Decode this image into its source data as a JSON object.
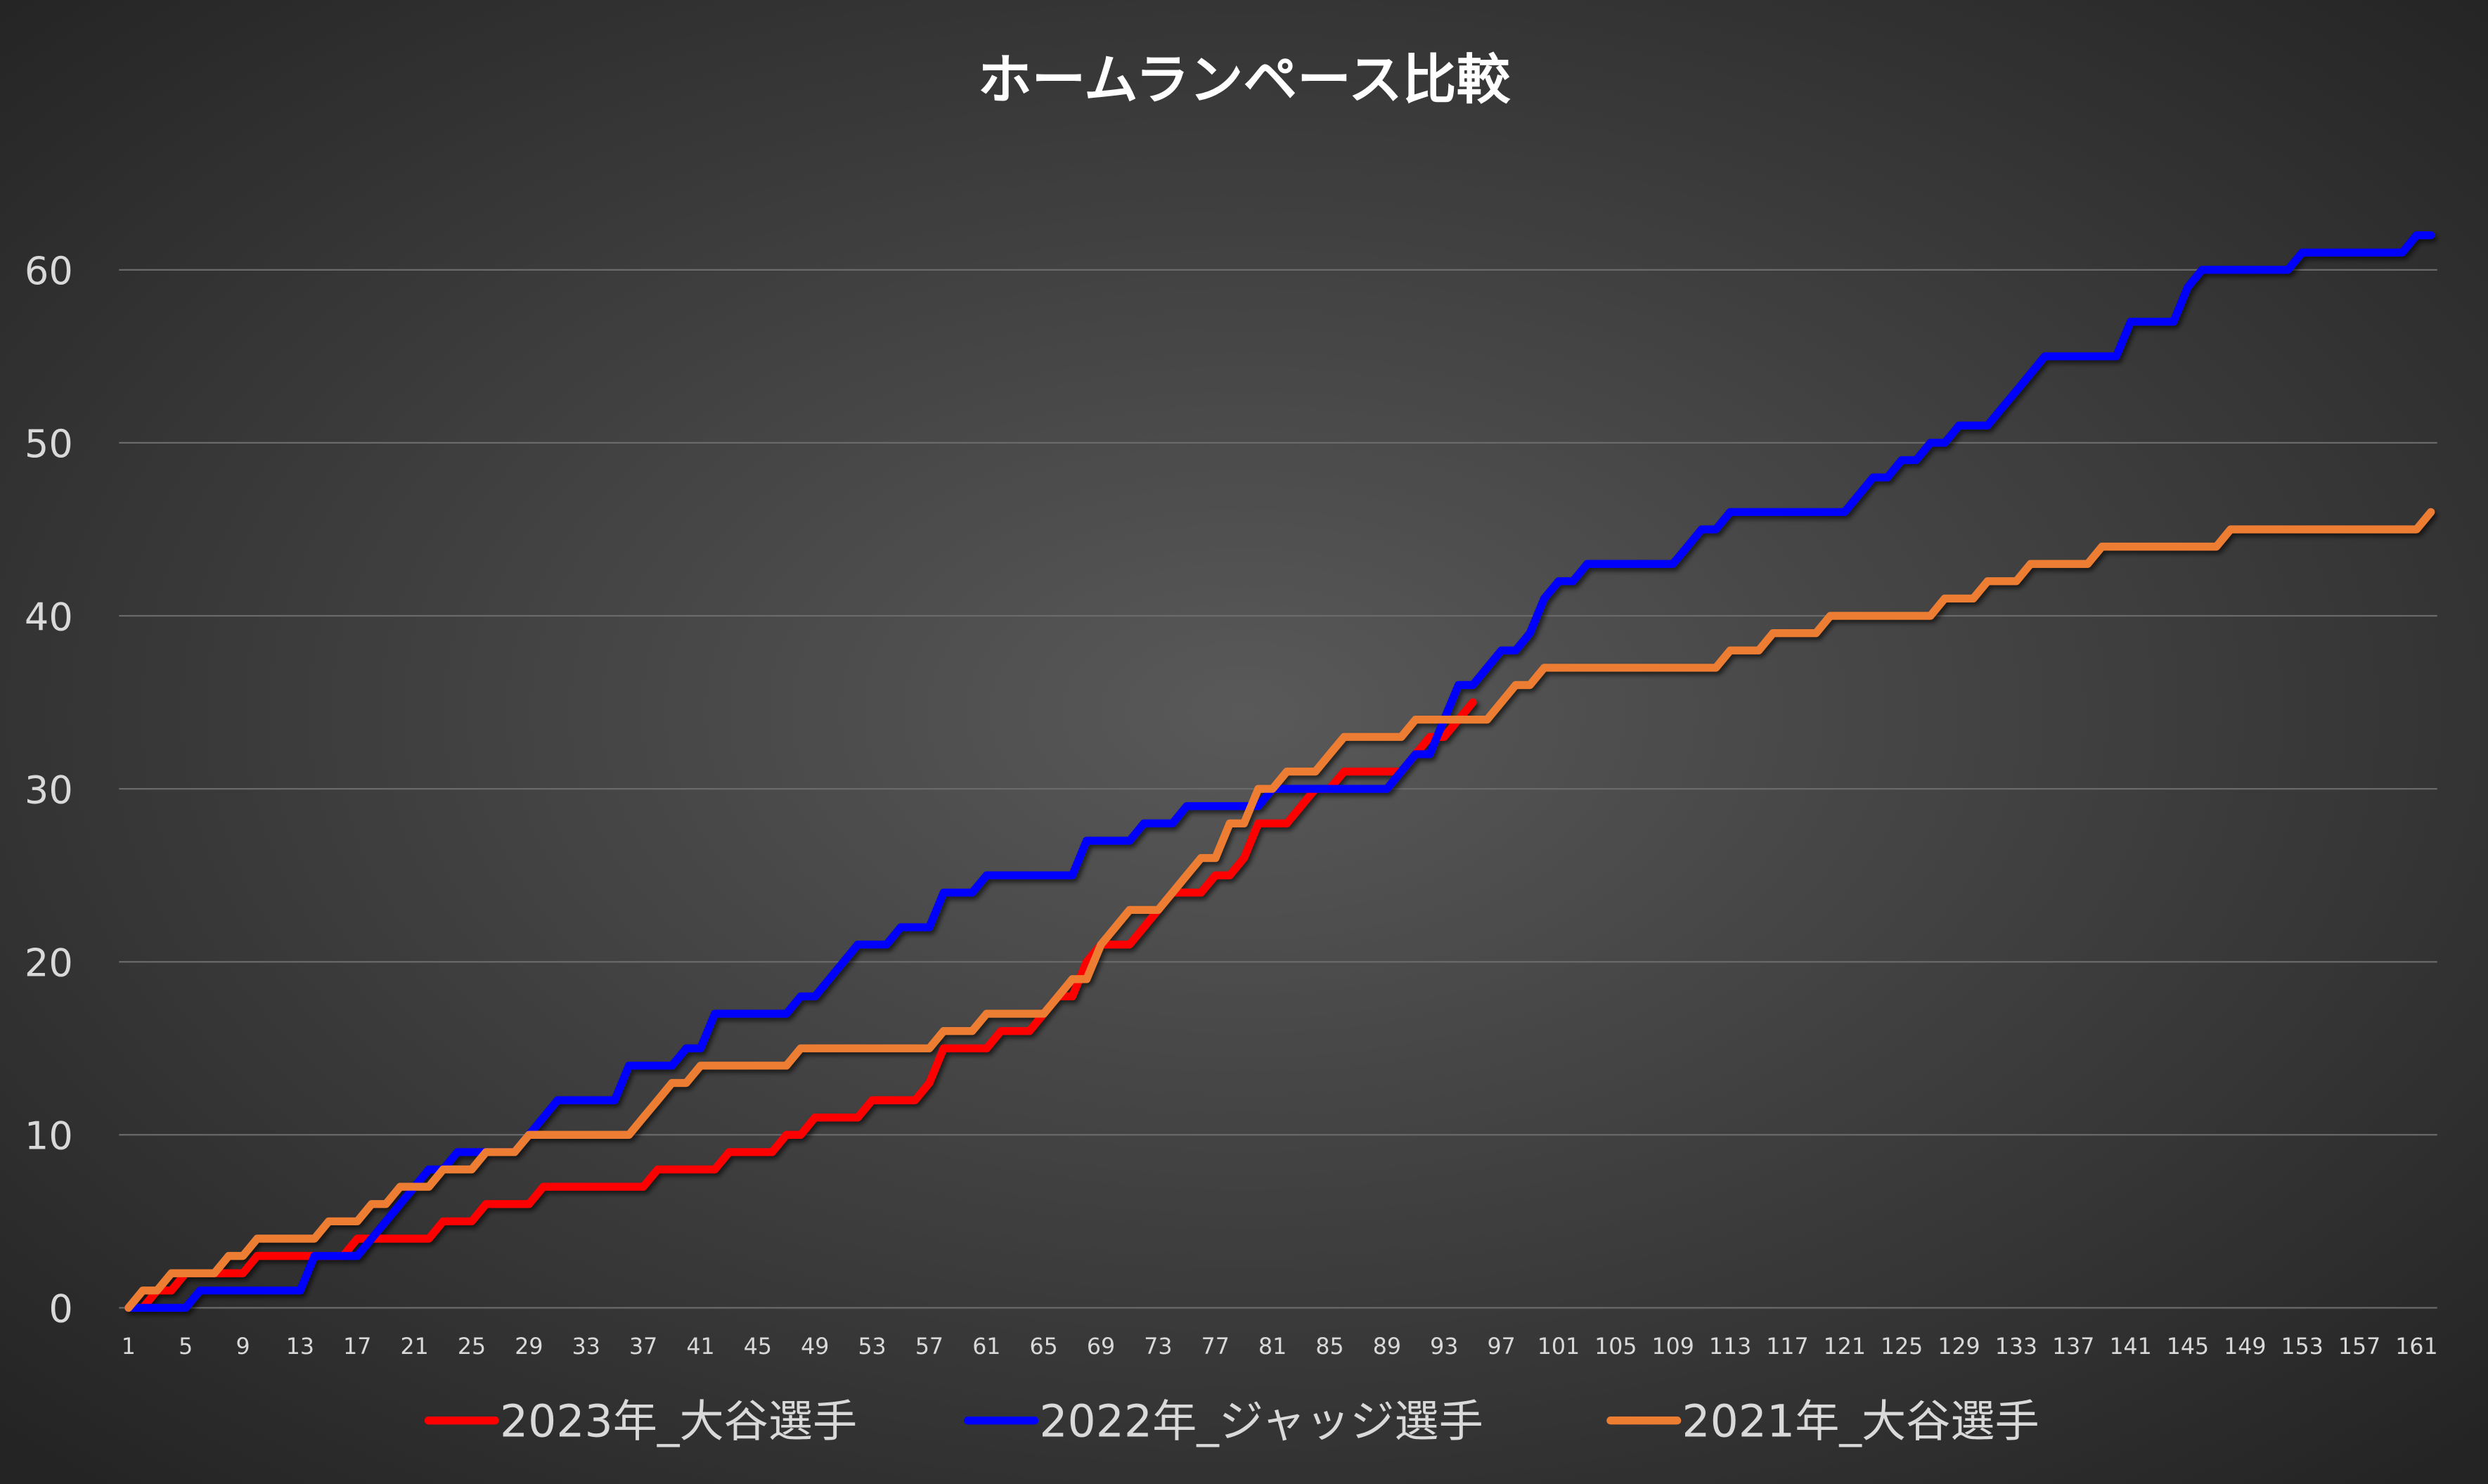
{
  "chart_data": {
    "type": "line",
    "title": "ホームランペース比較",
    "xlabel": "",
    "ylabel": "",
    "xlim": [
      1,
      162
    ],
    "ylim": [
      0,
      60
    ],
    "y_ticks": [
      0,
      10,
      20,
      30,
      40,
      50,
      60
    ],
    "x_ticks": [
      1,
      5,
      9,
      13,
      17,
      21,
      25,
      29,
      33,
      37,
      41,
      45,
      49,
      53,
      57,
      61,
      65,
      69,
      73,
      77,
      81,
      85,
      89,
      93,
      97,
      101,
      105,
      109,
      113,
      117,
      121,
      125,
      129,
      133,
      137,
      141,
      145,
      149,
      153,
      157,
      161
    ],
    "grid": true,
    "legend_position": "bottom",
    "series_format": "step points [game, cumulative HR]: value holds from this game until the next point",
    "series": [
      {
        "name": "2023年_大谷選手",
        "color": "#FF0000",
        "last_game": 95,
        "steps": [
          [
            1,
            0
          ],
          [
            3,
            1
          ],
          [
            5,
            2
          ],
          [
            10,
            3
          ],
          [
            17,
            4
          ],
          [
            23,
            5
          ],
          [
            26,
            6
          ],
          [
            30,
            7
          ],
          [
            38,
            8
          ],
          [
            43,
            9
          ],
          [
            47,
            10
          ],
          [
            49,
            11
          ],
          [
            53,
            12
          ],
          [
            57,
            13
          ],
          [
            58,
            15
          ],
          [
            62,
            16
          ],
          [
            65,
            17
          ],
          [
            66,
            18
          ],
          [
            68,
            20
          ],
          [
            69,
            21
          ],
          [
            72,
            22
          ],
          [
            73,
            23
          ],
          [
            74,
            24
          ],
          [
            77,
            25
          ],
          [
            79,
            26
          ],
          [
            80,
            28
          ],
          [
            83,
            29
          ],
          [
            84,
            30
          ],
          [
            86,
            31
          ],
          [
            91,
            32
          ],
          [
            92,
            33
          ],
          [
            94,
            34
          ],
          [
            95,
            35
          ]
        ]
      },
      {
        "name": "2022年_ジャッジ選手",
        "color": "#0000FF",
        "last_game": 162,
        "steps": [
          [
            1,
            0
          ],
          [
            6,
            1
          ],
          [
            14,
            3
          ],
          [
            18,
            4
          ],
          [
            19,
            5
          ],
          [
            20,
            6
          ],
          [
            21,
            7
          ],
          [
            22,
            8
          ],
          [
            24,
            9
          ],
          [
            29,
            10
          ],
          [
            30,
            11
          ],
          [
            31,
            12
          ],
          [
            36,
            14
          ],
          [
            40,
            15
          ],
          [
            42,
            17
          ],
          [
            48,
            18
          ],
          [
            50,
            19
          ],
          [
            51,
            20
          ],
          [
            52,
            21
          ],
          [
            55,
            22
          ],
          [
            58,
            24
          ],
          [
            61,
            25
          ],
          [
            68,
            27
          ],
          [
            72,
            28
          ],
          [
            75,
            29
          ],
          [
            81,
            30
          ],
          [
            90,
            31
          ],
          [
            91,
            32
          ],
          [
            93,
            34
          ],
          [
            94,
            36
          ],
          [
            96,
            37
          ],
          [
            97,
            38
          ],
          [
            99,
            39
          ],
          [
            100,
            41
          ],
          [
            101,
            42
          ],
          [
            103,
            43
          ],
          [
            110,
            44
          ],
          [
            111,
            45
          ],
          [
            113,
            46
          ],
          [
            122,
            47
          ],
          [
            123,
            48
          ],
          [
            125,
            49
          ],
          [
            127,
            50
          ],
          [
            129,
            51
          ],
          [
            132,
            52
          ],
          [
            133,
            53
          ],
          [
            134,
            54
          ],
          [
            135,
            55
          ],
          [
            141,
            57
          ],
          [
            145,
            59
          ],
          [
            146,
            60
          ],
          [
            153,
            61
          ],
          [
            161,
            62
          ]
        ]
      },
      {
        "name": "2021年_大谷選手",
        "color": "#ED7D31",
        "last_game": 162,
        "steps": [
          [
            1,
            0
          ],
          [
            2,
            1
          ],
          [
            4,
            2
          ],
          [
            8,
            3
          ],
          [
            10,
            4
          ],
          [
            15,
            5
          ],
          [
            18,
            6
          ],
          [
            20,
            7
          ],
          [
            23,
            8
          ],
          [
            26,
            9
          ],
          [
            29,
            10
          ],
          [
            37,
            11
          ],
          [
            38,
            12
          ],
          [
            39,
            13
          ],
          [
            41,
            14
          ],
          [
            48,
            15
          ],
          [
            58,
            16
          ],
          [
            61,
            17
          ],
          [
            66,
            18
          ],
          [
            67,
            19
          ],
          [
            69,
            21
          ],
          [
            70,
            22
          ],
          [
            71,
            23
          ],
          [
            74,
            24
          ],
          [
            75,
            25
          ],
          [
            76,
            26
          ],
          [
            78,
            28
          ],
          [
            80,
            30
          ],
          [
            82,
            31
          ],
          [
            85,
            32
          ],
          [
            86,
            33
          ],
          [
            91,
            34
          ],
          [
            97,
            35
          ],
          [
            98,
            36
          ],
          [
            100,
            37
          ],
          [
            113,
            38
          ],
          [
            116,
            39
          ],
          [
            120,
            40
          ],
          [
            128,
            41
          ],
          [
            131,
            42
          ],
          [
            134,
            43
          ],
          [
            139,
            44
          ],
          [
            148,
            45
          ],
          [
            162,
            46
          ]
        ]
      }
    ]
  }
}
